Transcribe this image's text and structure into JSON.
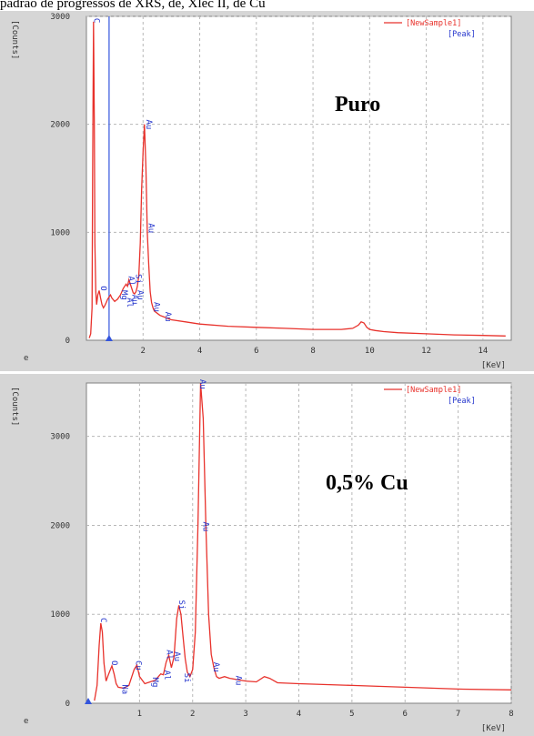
{
  "caption": "padrão de progressos de XRS, de, Xlec II, de Cu",
  "colors": {
    "spectrum": "#e8322c",
    "peak_line": "#3355dd",
    "label": "#2233cc",
    "grid": "#b8b8b8",
    "panel": "#d6d6d6"
  },
  "chart_data": [
    {
      "type": "line",
      "title": "Puro",
      "xlabel": "[KeV]",
      "ylabel": "[Counts]",
      "xlim": [
        0,
        15
      ],
      "ylim": [
        0,
        3000
      ],
      "x_ticks": [
        2,
        4,
        6,
        8,
        10,
        12,
        14
      ],
      "y_ticks": [
        0,
        1000,
        2000,
        3000
      ],
      "legend": {
        "position": "top-right",
        "entries": [
          "[NewSample1]",
          "[Peak]"
        ]
      },
      "marker_line_x": 0.8,
      "series": [
        {
          "name": "[NewSample1]",
          "x": [
            0.1,
            0.15,
            0.2,
            0.22,
            0.25,
            0.28,
            0.3,
            0.33,
            0.36,
            0.4,
            0.45,
            0.5,
            0.55,
            0.6,
            0.65,
            0.7,
            0.75,
            0.8,
            0.85,
            0.9,
            1.0,
            1.1,
            1.2,
            1.3,
            1.4,
            1.45,
            1.5,
            1.55,
            1.6,
            1.65,
            1.7,
            1.75,
            1.8,
            1.85,
            1.9,
            1.95,
            2.0,
            2.05,
            2.1,
            2.15,
            2.2,
            2.25,
            2.3,
            2.35,
            2.4,
            2.5,
            2.6,
            2.7,
            2.8,
            3.0,
            3.5,
            4.0,
            5.0,
            6.0,
            7.0,
            8.0,
            9.0,
            9.4,
            9.6,
            9.7,
            9.8,
            9.9,
            10.0,
            10.2,
            10.5,
            11.0,
            12.0,
            13.0,
            14.0,
            14.8
          ],
          "y": [
            20,
            60,
            300,
            1500,
            2950,
            2000,
            900,
            450,
            330,
            420,
            460,
            390,
            330,
            300,
            320,
            350,
            380,
            400,
            420,
            390,
            360,
            380,
            420,
            480,
            520,
            500,
            560,
            520,
            480,
            440,
            430,
            450,
            500,
            600,
            900,
            1400,
            1750,
            2000,
            1600,
            1000,
            700,
            450,
            350,
            300,
            270,
            250,
            230,
            220,
            210,
            190,
            170,
            150,
            130,
            120,
            110,
            100,
            100,
            110,
            140,
            170,
            160,
            120,
            100,
            90,
            80,
            70,
            60,
            50,
            45,
            40
          ]
        }
      ],
      "peak_labels": [
        {
          "label": "C",
          "x": 0.28,
          "y": 2950
        },
        {
          "label": "O",
          "x": 0.52,
          "y": 470
        },
        {
          "label": "Mg",
          "x": 1.25,
          "y": 430
        },
        {
          "label": "Al",
          "x": 1.45,
          "y": 360
        },
        {
          "label": "Au",
          "x": 1.62,
          "y": 390
        },
        {
          "label": "Au",
          "x": 1.82,
          "y": 430
        },
        {
          "label": "Al",
          "x": 1.5,
          "y": 560
        },
        {
          "label": "Si",
          "x": 1.75,
          "y": 580
        },
        {
          "label": "Au",
          "x": 2.12,
          "y": 2010
        },
        {
          "label": "Au",
          "x": 2.2,
          "y": 1050
        },
        {
          "label": "Au",
          "x": 2.4,
          "y": 320
        },
        {
          "label": "Au",
          "x": 2.8,
          "y": 230
        }
      ]
    },
    {
      "type": "line",
      "title": "0,5% Cu",
      "xlabel": "[KeV]",
      "ylabel": "[Counts]",
      "xlim": [
        0,
        8
      ],
      "ylim": [
        0,
        3600
      ],
      "x_ticks": [
        1,
        2,
        3,
        4,
        5,
        6,
        7,
        8
      ],
      "y_ticks": [
        0,
        1000,
        2000,
        3000
      ],
      "legend": {
        "position": "top-right",
        "entries": [
          "[NewSample1]",
          "[Peak]"
        ]
      },
      "series": [
        {
          "name": "[NewSample1]",
          "x": [
            0.15,
            0.2,
            0.24,
            0.27,
            0.3,
            0.33,
            0.37,
            0.42,
            0.48,
            0.52,
            0.56,
            0.6,
            0.7,
            0.8,
            0.9,
            0.95,
            1.0,
            1.1,
            1.2,
            1.3,
            1.4,
            1.45,
            1.5,
            1.55,
            1.6,
            1.65,
            1.7,
            1.74,
            1.78,
            1.82,
            1.86,
            1.9,
            1.95,
            2.0,
            2.05,
            2.1,
            2.15,
            2.2,
            2.25,
            2.3,
            2.35,
            2.4,
            2.45,
            2.5,
            2.6,
            2.7,
            2.8,
            2.9,
            3.0,
            3.2,
            3.35,
            3.45,
            3.6,
            4.0,
            5.0,
            6.0,
            7.0,
            8.0
          ],
          "y": [
            30,
            200,
            650,
            900,
            800,
            450,
            250,
            330,
            420,
            330,
            220,
            180,
            170,
            200,
            380,
            430,
            300,
            220,
            240,
            260,
            330,
            320,
            460,
            540,
            400,
            520,
            950,
            1100,
            1000,
            750,
            500,
            350,
            300,
            380,
            800,
            2000,
            3600,
            3200,
            2000,
            1000,
            550,
            400,
            300,
            280,
            300,
            280,
            270,
            260,
            250,
            240,
            300,
            280,
            230,
            220,
            200,
            180,
            160,
            150
          ]
        }
      ],
      "peak_labels": [
        {
          "label": "C",
          "x": 0.27,
          "y": 920
        },
        {
          "label": "O",
          "x": 0.48,
          "y": 440
        },
        {
          "label": "Na",
          "x": 0.68,
          "y": 170
        },
        {
          "label": "Cu",
          "x": 0.93,
          "y": 440
        },
        {
          "label": "Mg",
          "x": 1.25,
          "y": 250
        },
        {
          "label": "Al",
          "x": 1.47,
          "y": 330
        },
        {
          "label": "Al",
          "x": 1.52,
          "y": 560
        },
        {
          "label": "Au",
          "x": 1.66,
          "y": 540
        },
        {
          "label": "Si",
          "x": 1.75,
          "y": 1120
        },
        {
          "label": "Si",
          "x": 1.85,
          "y": 300
        },
        {
          "label": "Au",
          "x": 2.14,
          "y": 3600
        },
        {
          "label": "Au",
          "x": 2.2,
          "y": 2000
        },
        {
          "label": "Au",
          "x": 2.4,
          "y": 420
        },
        {
          "label": "Au",
          "x": 2.82,
          "y": 270
        }
      ]
    }
  ]
}
